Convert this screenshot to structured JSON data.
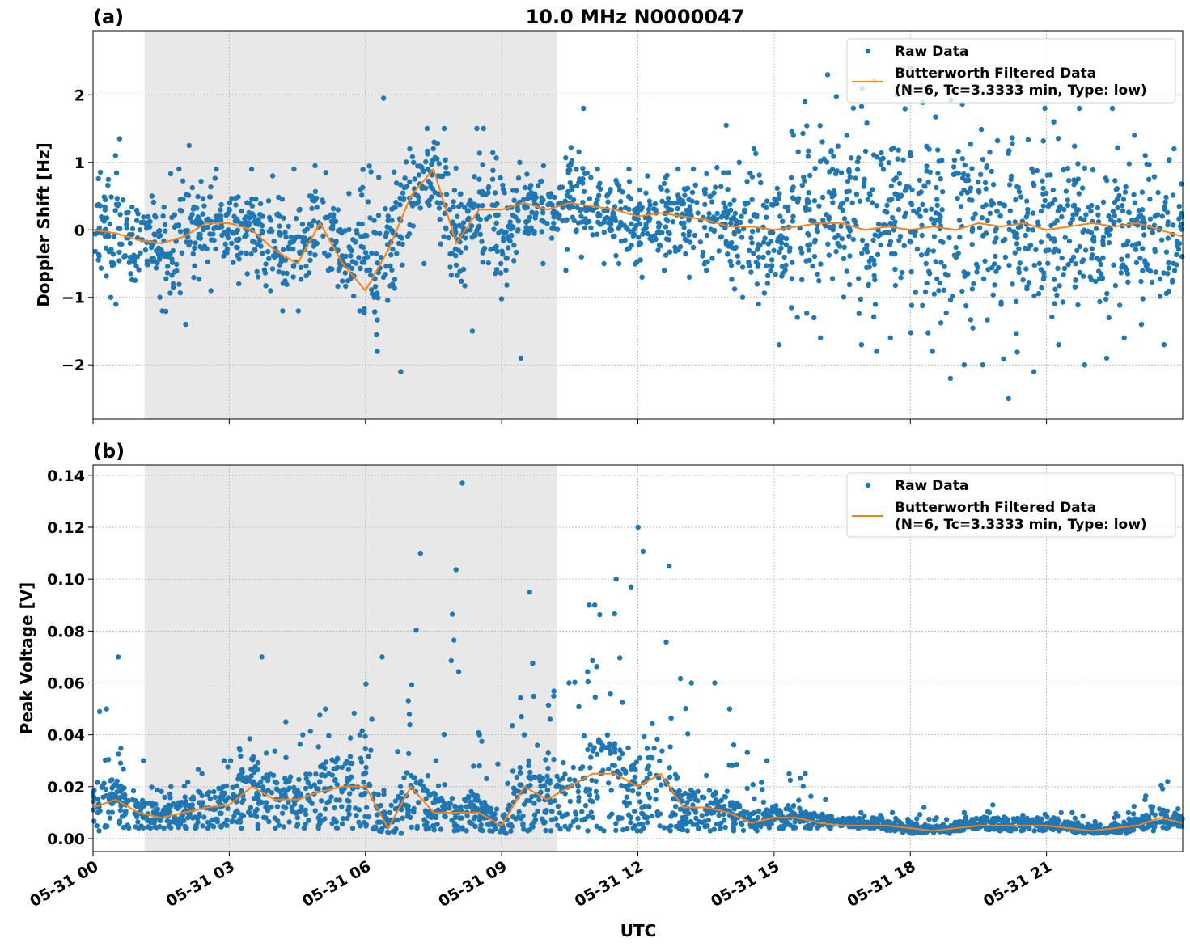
{
  "title": "10.0 MHz N0000047",
  "colors": {
    "raw": "#1f77b4",
    "filtered": "#ff7f0e",
    "shade": "#e8e8e8"
  },
  "chart_data": [
    {
      "type": "scatter+line",
      "panel_label": "(a)",
      "ylabel": "Doppler Shift [Hz]",
      "xlabel": "",
      "ylim": [
        -2.8,
        2.95
      ],
      "yticks": [
        -2,
        -1,
        0,
        1,
        2
      ],
      "ytick_labels": [
        "−2",
        "−1",
        "0",
        "1",
        "2"
      ],
      "xlim_hours": [
        0,
        24
      ],
      "shaded_span_utc": [
        "05-31 01:08",
        "05-31 10:13"
      ],
      "grid": true,
      "legend": {
        "placement": "top-right",
        "entries": [
          "Raw Data",
          "Butterworth Filtered Data\n(N=6, Tc=3.3333 min, Type: low)"
        ]
      },
      "x_hours": [
        0,
        0.5,
        1,
        1.5,
        2,
        2.5,
        3,
        3.5,
        4,
        4.5,
        5,
        5.5,
        6,
        6.5,
        7,
        7.5,
        8,
        8.5,
        9,
        9.5,
        10,
        10.5,
        11,
        11.5,
        12,
        12.5,
        13,
        13.5,
        14,
        14.5,
        15,
        15.5,
        16,
        16.5,
        17,
        17.5,
        18,
        18.5,
        19,
        19.5,
        20,
        20.5,
        21,
        21.5,
        22,
        22.5,
        23,
        23.5,
        24
      ],
      "filtered": [
        0.0,
        -0.05,
        -0.15,
        -0.2,
        -0.1,
        0.1,
        0.1,
        0.0,
        -0.3,
        -0.5,
        0.1,
        -0.5,
        -0.9,
        -0.3,
        0.5,
        0.9,
        -0.2,
        0.3,
        0.3,
        0.4,
        0.3,
        0.4,
        0.35,
        0.3,
        0.2,
        0.25,
        0.2,
        0.15,
        0.05,
        0.05,
        0.0,
        0.05,
        0.1,
        0.1,
        0.0,
        0.05,
        0.0,
        0.05,
        0.0,
        0.1,
        0.05,
        0.1,
        0.0,
        0.05,
        0.1,
        0.05,
        0.1,
        0.0,
        -0.1
      ],
      "raw_low": [
        -1.0,
        -1.1,
        -1.0,
        -1.2,
        -1.4,
        -0.9,
        -0.8,
        -0.9,
        -1.2,
        -1.2,
        -0.6,
        -1.2,
        -1.8,
        -2.1,
        -0.5,
        0.3,
        -1.5,
        -0.5,
        -1.9,
        -0.5,
        -0.6,
        -0.4,
        -0.5,
        -0.5,
        -0.7,
        -0.6,
        -0.7,
        -0.6,
        -1.0,
        -1.1,
        -1.7,
        -1.3,
        -1.6,
        -1.7,
        -1.8,
        -1.6,
        -1.8,
        -2.2,
        -2.0,
        -2.0,
        -2.5,
        -2.1,
        -1.7,
        -2.0,
        -1.9,
        -1.6,
        -1.4,
        -1.7,
        -1.3
      ],
      "raw_high": [
        1.1,
        1.35,
        0.5,
        0.9,
        1.25,
        0.9,
        0.9,
        0.8,
        0.9,
        0.95,
        0.85,
        0.6,
        1.95,
        1.2,
        1.5,
        1.5,
        1.5,
        1.5,
        1.0,
        0.95,
        0.95,
        1.8,
        0.9,
        0.9,
        0.8,
        0.9,
        0.9,
        1.55,
        1.0,
        1.2,
        1.4,
        1.9,
        2.3,
        2.1,
        2.2,
        2.0,
        2.4,
        2.3,
        2.6,
        2.1,
        2.2,
        1.8,
        1.6,
        1.8,
        1.8,
        1.4,
        1.1,
        1.2,
        1.0
      ]
    },
    {
      "type": "scatter+line",
      "panel_label": "(b)",
      "ylabel": "Peak Voltage [V]",
      "xlabel": "UTC",
      "ylim": [
        -0.005,
        0.144
      ],
      "yticks": [
        0,
        0.02,
        0.04,
        0.06,
        0.08,
        0.1,
        0.12,
        0.14
      ],
      "ytick_labels": [
        "0.00",
        "0.02",
        "0.04",
        "0.06",
        "0.08",
        "0.10",
        "0.12",
        "0.14"
      ],
      "xticks_hours": [
        0,
        3,
        6,
        9,
        12,
        15,
        18,
        21
      ],
      "xtick_labels": [
        "05-31 00",
        "05-31 03",
        "05-31 06",
        "05-31 09",
        "05-31 12",
        "05-31 15",
        "05-31 18",
        "05-31 21"
      ],
      "xlim_hours": [
        0,
        24
      ],
      "shaded_span_utc": [
        "05-31 01:08",
        "05-31 10:13"
      ],
      "grid": true,
      "legend": {
        "placement": "top-right",
        "entries": [
          "Raw Data",
          "Butterworth Filtered Data\n(N=6, Tc=3.3333 min, Type: low)"
        ]
      },
      "x_hours": [
        0,
        0.5,
        1,
        1.5,
        2,
        2.5,
        3,
        3.5,
        4,
        4.5,
        5,
        5.5,
        6,
        6.5,
        7,
        7.5,
        8,
        8.5,
        9,
        9.5,
        10,
        10.5,
        11,
        11.5,
        12,
        12.5,
        13,
        13.5,
        14,
        14.5,
        15,
        15.5,
        16,
        16.5,
        17,
        17.5,
        18,
        18.5,
        19,
        19.5,
        20,
        20.5,
        21,
        21.5,
        22,
        22.5,
        23,
        23.5,
        24
      ],
      "filtered": [
        0.012,
        0.015,
        0.01,
        0.008,
        0.01,
        0.012,
        0.013,
        0.02,
        0.015,
        0.015,
        0.018,
        0.02,
        0.02,
        0.004,
        0.02,
        0.01,
        0.01,
        0.01,
        0.005,
        0.02,
        0.015,
        0.02,
        0.025,
        0.025,
        0.02,
        0.025,
        0.012,
        0.012,
        0.01,
        0.006,
        0.008,
        0.008,
        0.006,
        0.005,
        0.005,
        0.005,
        0.004,
        0.003,
        0.004,
        0.005,
        0.005,
        0.005,
        0.005,
        0.004,
        0.003,
        0.004,
        0.005,
        0.008,
        0.006
      ],
      "raw_low": [
        0.003,
        0.004,
        0.004,
        0.004,
        0.004,
        0.004,
        0.004,
        0.004,
        0.004,
        0.004,
        0.004,
        0.004,
        0.004,
        0.002,
        0.004,
        0.003,
        0.003,
        0.003,
        0.002,
        0.003,
        0.003,
        0.003,
        0.003,
        0.003,
        0.003,
        0.003,
        0.003,
        0.003,
        0.003,
        0.003,
        0.004,
        0.004,
        0.004,
        0.004,
        0.004,
        0.003,
        0.002,
        0.002,
        0.003,
        0.003,
        0.003,
        0.003,
        0.003,
        0.002,
        0.002,
        0.002,
        0.003,
        0.004,
        0.004
      ],
      "raw_high": [
        0.05,
        0.07,
        0.03,
        0.02,
        0.025,
        0.03,
        0.03,
        0.07,
        0.045,
        0.04,
        0.05,
        0.04,
        0.07,
        0.01,
        0.11,
        0.03,
        0.137,
        0.04,
        0.04,
        0.095,
        0.06,
        0.09,
        0.09,
        0.1,
        0.12,
        0.105,
        0.06,
        0.06,
        0.05,
        0.03,
        0.025,
        0.025,
        0.015,
        0.01,
        0.009,
        0.01,
        0.012,
        0.008,
        0.01,
        0.013,
        0.009,
        0.008,
        0.01,
        0.01,
        0.008,
        0.01,
        0.015,
        0.022,
        0.015
      ]
    }
  ]
}
